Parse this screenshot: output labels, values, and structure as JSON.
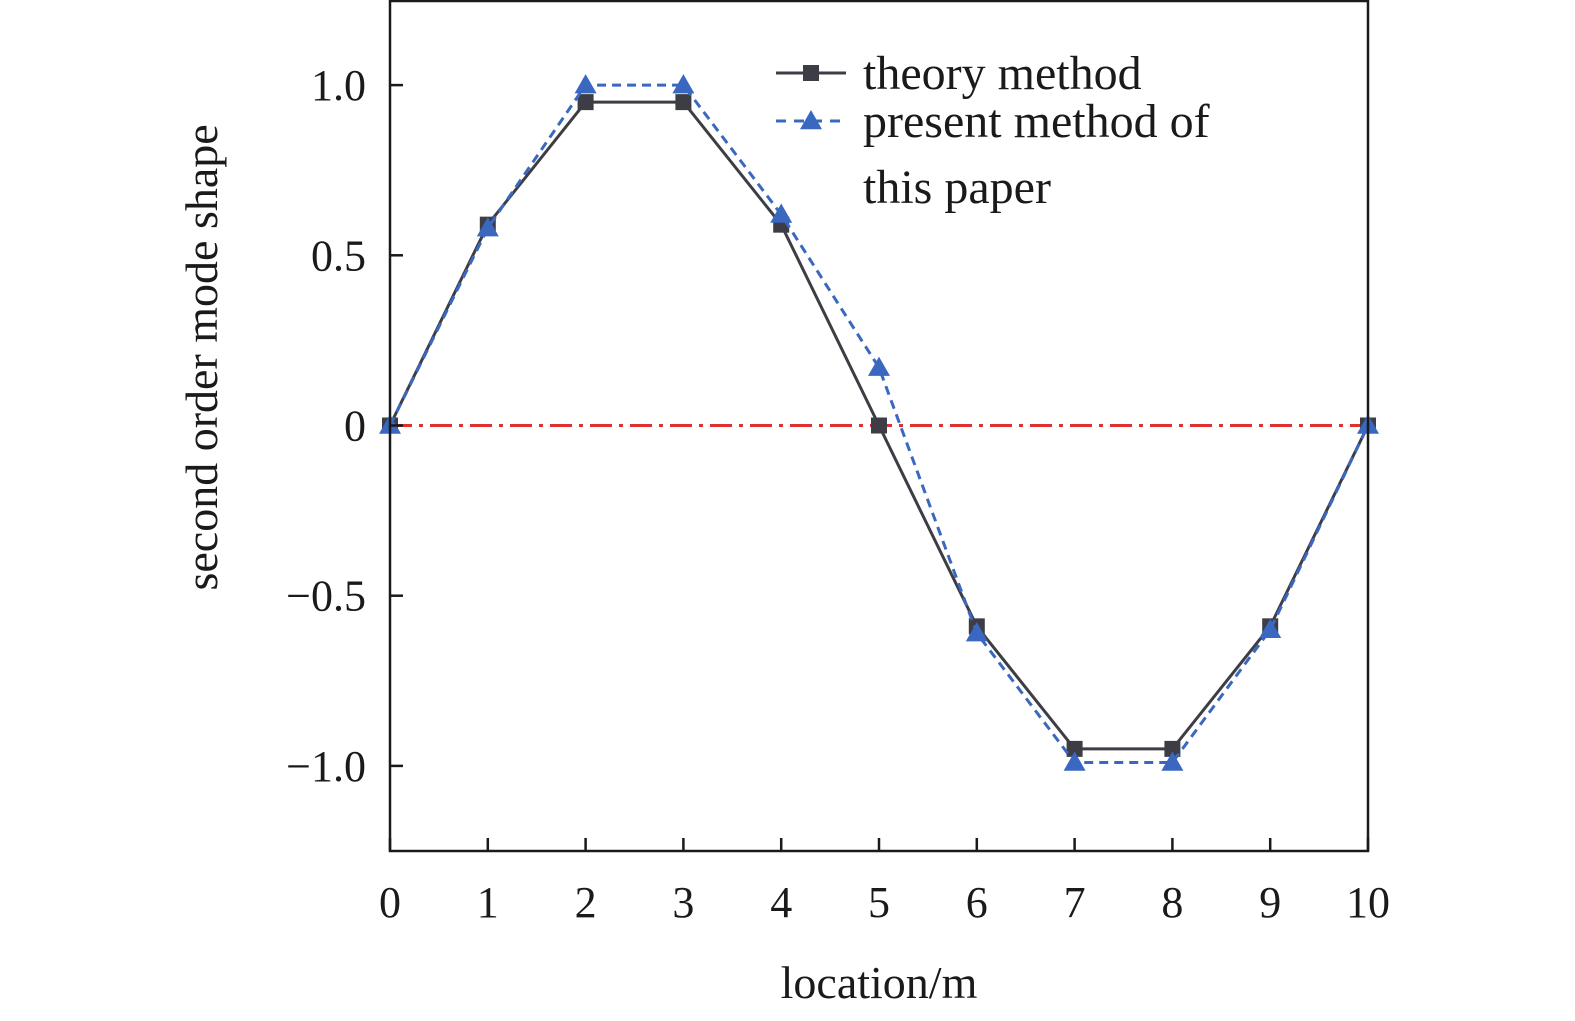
{
  "chart_data": {
    "type": "line",
    "xlabel": "location/m",
    "ylabel": "second order mode shape",
    "xlim": [
      0,
      10
    ],
    "ylim": [
      -1.25,
      1.25
    ],
    "xticks": [
      0,
      1,
      2,
      3,
      4,
      5,
      6,
      7,
      8,
      9,
      10
    ],
    "xtick_labels": [
      "0",
      "1",
      "2",
      "3",
      "4",
      "5",
      "6",
      "7",
      "8",
      "9",
      "10"
    ],
    "yticks": [
      1.0,
      0.5,
      0,
      -0.5,
      -1.0
    ],
    "ytick_labels": [
      "1.0",
      "0.5",
      "0",
      "−0.5",
      "−1.0"
    ],
    "grid": false,
    "legend_position": "top-right",
    "reference_line": {
      "y": 0,
      "style": "dash-dot",
      "color": "#e03030"
    },
    "series": [
      {
        "name": "theory method",
        "color": "#3d3d45",
        "line_style": "solid",
        "marker": "square",
        "x": [
          0,
          1,
          2,
          3,
          4,
          5,
          6,
          7,
          8,
          9,
          10
        ],
        "y": [
          0,
          0.59,
          0.95,
          0.95,
          0.59,
          0,
          -0.59,
          -0.95,
          -0.95,
          -0.59,
          0
        ]
      },
      {
        "name": "present method of this paper",
        "legend_lines": [
          "present method of",
          "this paper"
        ],
        "color": "#3a68c0",
        "line_style": "dashed",
        "marker": "triangle",
        "x": [
          0,
          1,
          2,
          3,
          4,
          5,
          6,
          7,
          8,
          9,
          10
        ],
        "y": [
          0,
          0.58,
          1.0,
          1.0,
          0.62,
          0.17,
          -0.61,
          -0.99,
          -0.99,
          -0.6,
          0
        ]
      }
    ]
  }
}
